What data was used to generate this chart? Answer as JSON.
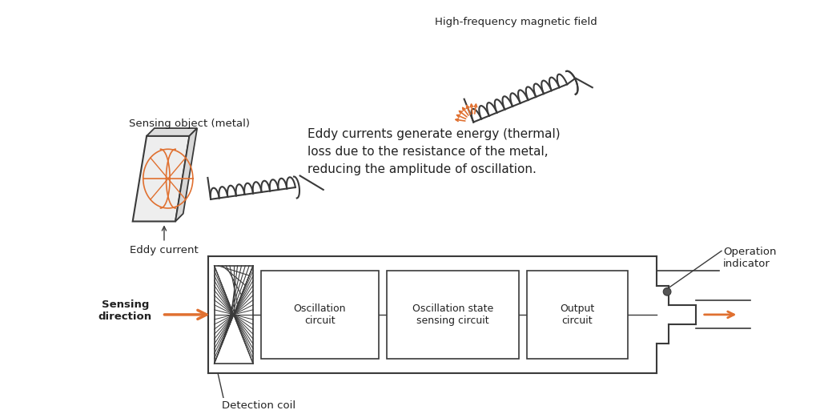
{
  "bg_color": "#ffffff",
  "line_color": "#3a3a3a",
  "orange_color": "#E07030",
  "text_color": "#222222",
  "labels": {
    "sensing_object": "Sensing object (metal)",
    "eddy_current": "Eddy current",
    "hf_field": "High-frequency magnetic field",
    "eddy_text": "Eddy currents generate energy (thermal)\nloss due to the resistance of the metal,\nreducing the amplitude of oscillation.",
    "oscillation_circuit": "Oscillation\ncircuit",
    "oscillation_state": "Oscillation state\nsensing circuit",
    "output_circuit": "Output\ncircuit",
    "detection_coil": "Detection coil",
    "sensing_direction": "Sensing\ndirection",
    "operation_indicator": "Operation\nindicator"
  },
  "figsize": [
    10.24,
    5.12
  ],
  "dpi": 100
}
